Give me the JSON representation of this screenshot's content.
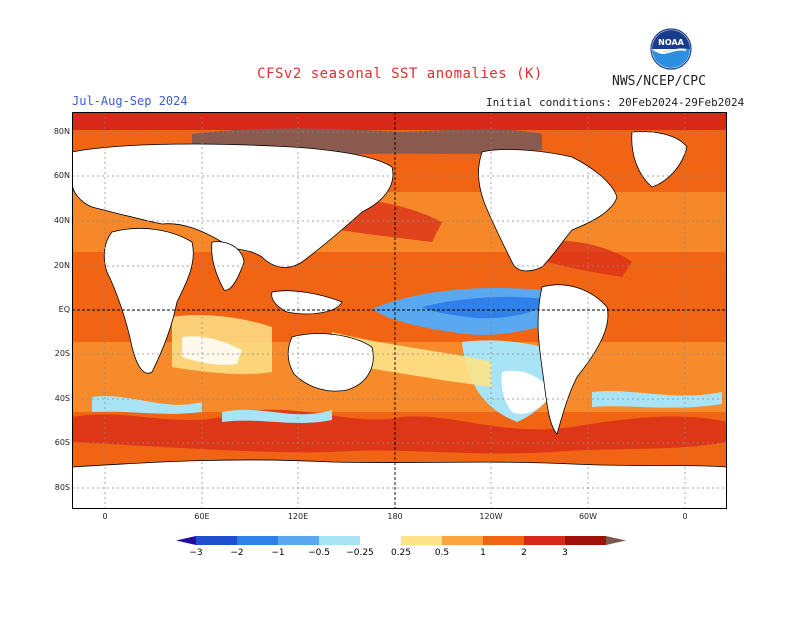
{
  "title": "CFSv2 seasonal SST anomalies (K)",
  "agency": "NWS/NCEP/CPC",
  "season": "Jul-Aug-Sep 2024",
  "initial_conditions": "Initial conditions: 20Feb2024-29Feb2024",
  "logo_text": "NOAA",
  "lat_labels": [
    "80N",
    "60N",
    "40N",
    "20N",
    "EQ",
    "20S",
    "40S",
    "60S",
    "80S"
  ],
  "lon_labels": [
    "0",
    "60E",
    "120E",
    "180",
    "120W",
    "60W",
    "0"
  ],
  "colorbar": {
    "tick_labels": [
      "-3",
      "-2",
      "-1",
      "-0.5",
      "-0.25",
      "0.25",
      "0.5",
      "1",
      "2",
      "3"
    ],
    "colors": [
      "#1f0fa0",
      "#1e4fd0",
      "#2f80e8",
      "#5aa8f0",
      "#a8e4f5",
      "#ffffff",
      "#fde28a",
      "#fca53c",
      "#f06414",
      "#d82818",
      "#a01008",
      "#7a5a50"
    ]
  },
  "colors": {
    "title": "#e03030",
    "season": "#3b5bdb",
    "land": "#ffffff",
    "sea_ice": "#8a5a4e"
  }
}
